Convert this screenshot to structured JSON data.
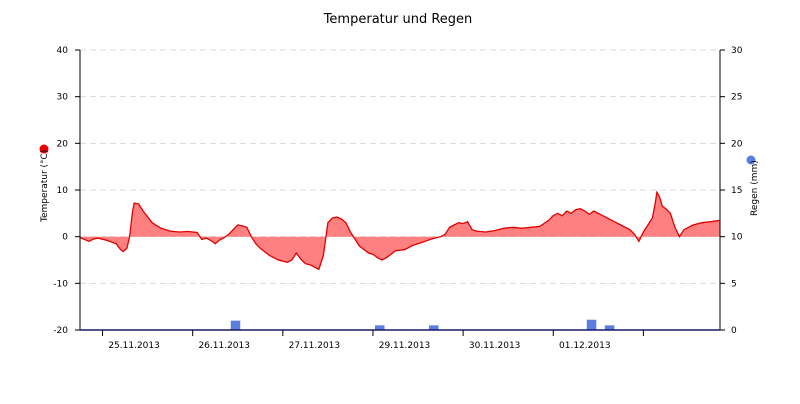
{
  "chart_data": {
    "type": "area",
    "title": "Temperatur und Regen",
    "x_ticks": [
      "25.11.2013",
      "26.11.2013",
      "27.11.2013",
      "29.11.2013",
      "30.11.2013",
      "01.12.2013"
    ],
    "y_left": {
      "label": "Temperatur (°C)",
      "range": [
        -20,
        40
      ],
      "ticks": [
        "-20",
        "-10",
        "0",
        "10",
        "20",
        "30",
        "40"
      ]
    },
    "y_right": {
      "label": "Regen (mm)",
      "range": [
        0,
        30
      ],
      "ticks": [
        "0",
        "5",
        "10",
        "15",
        "20",
        "25",
        "30"
      ]
    },
    "grid": "horizontal dashed",
    "series": [
      {
        "kind": "temperature",
        "color": "#e00000",
        "fill": "#ff8080",
        "x_range": [
          -0.1,
          7.0
        ],
        "points": [
          [
            -0.1,
            -0.2
          ],
          [
            0.0,
            -1.0
          ],
          [
            0.05,
            -0.5
          ],
          [
            0.1,
            -0.3
          ],
          [
            0.2,
            -0.8
          ],
          [
            0.3,
            -1.5
          ],
          [
            0.35,
            -2.8
          ],
          [
            0.38,
            -3.2
          ],
          [
            0.42,
            -2.5
          ],
          [
            0.45,
            0.0
          ],
          [
            0.48,
            5.0
          ],
          [
            0.5,
            7.2
          ],
          [
            0.55,
            7.0
          ],
          [
            0.6,
            5.5
          ],
          [
            0.7,
            3.0
          ],
          [
            0.8,
            1.8
          ],
          [
            0.9,
            1.2
          ],
          [
            1.0,
            1.0
          ],
          [
            1.1,
            1.1
          ],
          [
            1.2,
            0.9
          ],
          [
            1.25,
            -0.6
          ],
          [
            1.3,
            -0.3
          ],
          [
            1.35,
            -0.8
          ],
          [
            1.4,
            -1.5
          ],
          [
            1.45,
            -0.7
          ],
          [
            1.5,
            -0.2
          ],
          [
            1.55,
            0.5
          ],
          [
            1.6,
            1.5
          ],
          [
            1.65,
            2.5
          ],
          [
            1.7,
            2.3
          ],
          [
            1.75,
            2.0
          ],
          [
            1.8,
            0.0
          ],
          [
            1.85,
            -1.5
          ],
          [
            1.9,
            -2.5
          ],
          [
            2.0,
            -4.0
          ],
          [
            2.1,
            -5.0
          ],
          [
            2.2,
            -5.5
          ],
          [
            2.25,
            -5.0
          ],
          [
            2.3,
            -3.5
          ],
          [
            2.35,
            -4.8
          ],
          [
            2.4,
            -5.8
          ],
          [
            2.45,
            -6.0
          ],
          [
            2.5,
            -6.5
          ],
          [
            2.55,
            -7.0
          ],
          [
            2.6,
            -4.0
          ],
          [
            2.65,
            3.0
          ],
          [
            2.7,
            4.0
          ],
          [
            2.75,
            4.2
          ],
          [
            2.8,
            3.8
          ],
          [
            2.85,
            3.0
          ],
          [
            2.9,
            1.0
          ],
          [
            3.0,
            -2.0
          ],
          [
            3.1,
            -3.5
          ],
          [
            3.15,
            -3.8
          ],
          [
            3.2,
            -4.5
          ],
          [
            3.25,
            -5.0
          ],
          [
            3.3,
            -4.5
          ],
          [
            3.4,
            -3.0
          ],
          [
            3.5,
            -2.8
          ],
          [
            3.6,
            -1.8
          ],
          [
            3.7,
            -1.2
          ],
          [
            3.8,
            -0.5
          ],
          [
            3.9,
            0.0
          ],
          [
            3.95,
            0.5
          ],
          [
            4.0,
            2.0
          ],
          [
            4.05,
            2.5
          ],
          [
            4.1,
            3.0
          ],
          [
            4.15,
            2.8
          ],
          [
            4.2,
            3.2
          ],
          [
            4.25,
            1.5
          ],
          [
            4.3,
            1.2
          ],
          [
            4.4,
            1.0
          ],
          [
            4.5,
            1.3
          ],
          [
            4.6,
            1.8
          ],
          [
            4.7,
            2.0
          ],
          [
            4.8,
            1.8
          ],
          [
            4.9,
            2.0
          ],
          [
            5.0,
            2.2
          ],
          [
            5.1,
            3.5
          ],
          [
            5.15,
            4.5
          ],
          [
            5.2,
            5.0
          ],
          [
            5.25,
            4.5
          ],
          [
            5.3,
            5.5
          ],
          [
            5.35,
            5.0
          ],
          [
            5.4,
            5.8
          ],
          [
            5.45,
            6.0
          ],
          [
            5.5,
            5.5
          ],
          [
            5.55,
            4.8
          ],
          [
            5.6,
            5.5
          ],
          [
            5.7,
            4.5
          ],
          [
            5.8,
            3.5
          ],
          [
            5.9,
            2.5
          ],
          [
            6.0,
            1.5
          ],
          [
            6.05,
            0.5
          ],
          [
            6.1,
            -1.0
          ],
          [
            6.15,
            1.0
          ],
          [
            6.2,
            2.5
          ],
          [
            6.25,
            4.0
          ],
          [
            6.28,
            7.0
          ],
          [
            6.3,
            9.5
          ],
          [
            6.33,
            8.5
          ],
          [
            6.36,
            6.5
          ],
          [
            6.4,
            6.0
          ],
          [
            6.45,
            5.0
          ],
          [
            6.5,
            2.0
          ],
          [
            6.55,
            0.0
          ],
          [
            6.6,
            1.5
          ],
          [
            6.7,
            2.5
          ],
          [
            6.8,
            3.0
          ],
          [
            6.9,
            3.2
          ],
          [
            7.0,
            3.5
          ]
        ]
      },
      {
        "kind": "rain",
        "color": "#5b7fe0",
        "bars": [
          [
            1.6,
            1.0
          ],
          [
            1.65,
            1.0
          ],
          [
            3.2,
            0.5
          ],
          [
            3.25,
            0.5
          ],
          [
            3.8,
            0.5
          ],
          [
            3.85,
            0.5
          ],
          [
            5.55,
            1.1
          ],
          [
            5.6,
            1.1
          ],
          [
            5.75,
            0.5
          ],
          [
            5.8,
            0.5
          ]
        ]
      }
    ]
  }
}
